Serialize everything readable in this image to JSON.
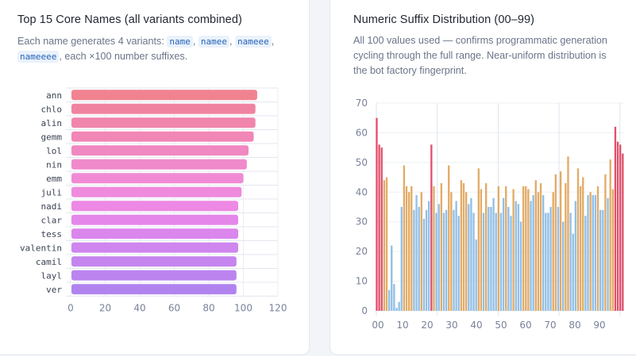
{
  "panels": {
    "left": {
      "title": "Top 15 Core Names (all variants combined)",
      "desc_prefix": "Each name generates 4 variants: ",
      "variants": [
        "name",
        "namee",
        "nameee",
        "nameeee"
      ],
      "desc_suffix": ", each ×100 number suffixes."
    },
    "right": {
      "title": "Numeric Suffix Distribution (00–99)",
      "desc": "All 100 values used — confirms programmatic generation cycling through the full range. Near-uniform distribution is the bot factory fingerprint."
    }
  },
  "chart_data": [
    {
      "type": "bar",
      "orientation": "horizontal",
      "title": "Top 15 Core Names (all variants combined)",
      "categories": [
        "ann",
        "chlo",
        "alin",
        "gemm",
        "lol",
        "nin",
        "emm",
        "juli",
        "nadi",
        "clar",
        "tess",
        "valentin",
        "camil",
        "layl",
        "ver"
      ],
      "values": [
        108,
        107,
        107,
        106,
        103,
        102,
        100,
        99,
        97,
        97,
        97,
        97,
        96,
        96,
        96
      ],
      "xlim": [
        0,
        120
      ],
      "xticks": [
        0,
        20,
        40,
        60,
        80,
        100,
        120
      ],
      "grid": true,
      "colors": [
        "#f0838f",
        "#f084a0",
        "#f086ab",
        "#f187b6",
        "#f088c1",
        "#f08acb",
        "#f08ad4",
        "#ef8add",
        "#ed89e4",
        "#e487ea",
        "#da86ec",
        "#cf86ee",
        "#c585ef",
        "#bb84ef",
        "#b083ef"
      ]
    },
    {
      "type": "bar",
      "title": "Numeric Suffix Distribution (00–99)",
      "x": "suffix 00-99",
      "values": [
        65,
        56,
        55,
        44,
        45,
        7,
        22,
        9,
        1,
        3,
        35,
        49,
        42,
        40,
        42,
        34,
        39,
        35,
        40,
        31,
        34,
        37,
        56,
        42,
        33,
        36,
        43,
        33,
        34,
        49,
        40,
        34,
        37,
        32,
        44,
        43,
        40,
        36,
        38,
        33,
        24,
        48,
        41,
        33,
        43,
        35,
        35,
        38,
        33,
        42,
        33,
        38,
        42,
        35,
        32,
        41,
        37,
        36,
        30,
        42,
        42,
        41,
        37,
        39,
        44,
        40,
        43,
        39,
        33,
        33,
        35,
        40,
        46,
        35,
        47,
        30,
        43,
        52,
        33,
        26,
        37,
        48,
        42,
        45,
        32,
        39,
        40,
        39,
        39,
        42,
        34,
        34,
        46,
        38,
        51,
        41,
        62,
        57,
        56,
        53
      ],
      "ylim": [
        0,
        70
      ],
      "yticks": [
        0,
        10,
        20,
        30,
        40,
        50,
        60,
        70
      ],
      "xtick_labels": [
        "00",
        "10",
        "20",
        "30",
        "40",
        "50",
        "60",
        "70",
        "80",
        "90"
      ],
      "color_rule": {
        "high": "#e0506b",
        "medium": "#e2ab66",
        "low": "#92bfe6"
      },
      "grid": true
    }
  ]
}
